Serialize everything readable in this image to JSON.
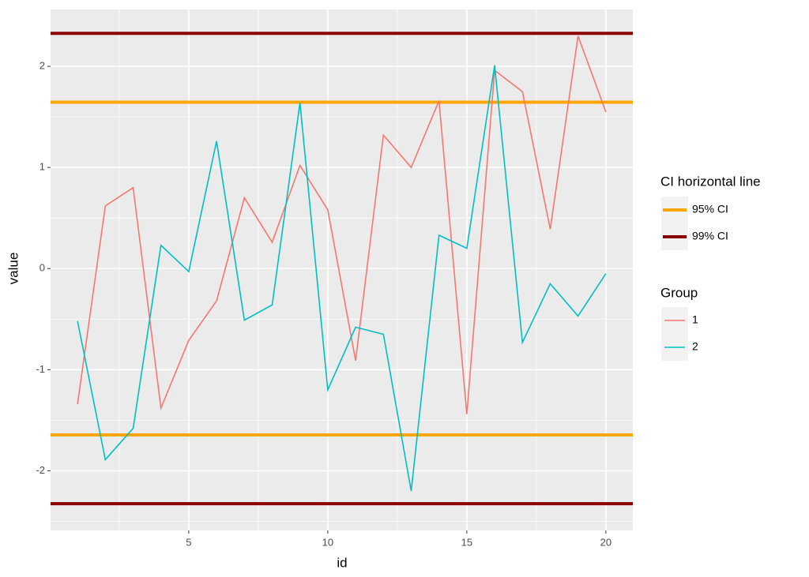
{
  "chart_data": {
    "type": "line",
    "xlabel": "id",
    "ylabel": "value",
    "x": [
      1,
      2,
      3,
      4,
      5,
      6,
      7,
      8,
      9,
      10,
      11,
      12,
      13,
      14,
      15,
      16,
      17,
      18,
      19,
      20
    ],
    "legend_title": "Group",
    "series": [
      {
        "name": "1",
        "color": "#F8766D",
        "values": [
          -1.34,
          0.62,
          0.8,
          -1.38,
          -0.71,
          -0.32,
          0.7,
          0.26,
          1.02,
          0.58,
          -0.91,
          1.32,
          1.0,
          1.66,
          -1.44,
          1.96,
          1.75,
          0.39,
          2.3,
          1.55
        ]
      },
      {
        "name": "2",
        "color": "#00BFC4",
        "values": [
          -0.52,
          -1.89,
          -1.58,
          0.23,
          -0.03,
          1.26,
          -0.51,
          -0.36,
          1.64,
          -1.2,
          -0.58,
          -0.65,
          -2.2,
          0.33,
          0.2,
          2.01,
          -0.73,
          -0.15,
          -0.47,
          -0.05
        ]
      }
    ],
    "hline_legend_title": "CI horizontal line",
    "hlines": [
      {
        "name": "95% CI",
        "color": "#FFA500",
        "values": [
          1.645,
          -1.645
        ]
      },
      {
        "name": "99% CI",
        "color": "#8B0000",
        "values": [
          2.326,
          -2.326
        ]
      }
    ],
    "xlim": [
      0.03,
      20.97
    ],
    "ylim": [
      -2.59,
      2.5625
    ],
    "xticks": [
      5,
      10,
      15,
      20
    ],
    "yticks": [
      -2,
      -1,
      0,
      1,
      2
    ],
    "minor_xticks": [
      2.5,
      7.5,
      12.5,
      17.5
    ],
    "minor_yticks": [
      -2.5,
      -1.5,
      -0.5,
      0.5,
      1.5
    ],
    "grid": true,
    "legend_position": "right"
  }
}
